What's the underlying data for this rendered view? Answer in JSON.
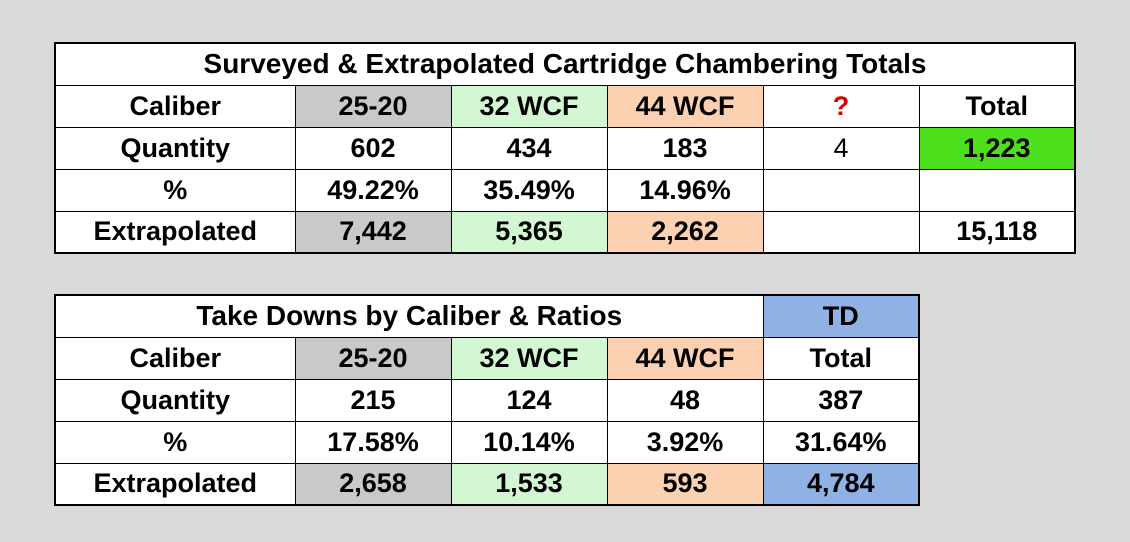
{
  "table1": {
    "title": "Surveyed & Extrapolated Cartridge Chambering Totals",
    "caliber_row": {
      "label": "Caliber",
      "c1": "25-20",
      "c2": "32 WCF",
      "c3": "44 WCF",
      "c4": "?",
      "c5": "Total"
    },
    "quantity_row": {
      "label": "Quantity",
      "c1": "602",
      "c2": "434",
      "c3": "183",
      "c4": "4",
      "c5": "1,223"
    },
    "percent_row": {
      "label": "%",
      "c1": "49.22%",
      "c2": "35.49%",
      "c3": "14.96%",
      "c4": "",
      "c5": ""
    },
    "extrapolated_row": {
      "label": "Extrapolated",
      "c1": "7,442",
      "c2": "5,365",
      "c3": "2,262",
      "c4": "",
      "c5": "15,118"
    }
  },
  "table2": {
    "title": "Take Downs by Caliber & Ratios",
    "td_header": "TD",
    "caliber_row": {
      "label": "Caliber",
      "c1": "25-20",
      "c2": "32 WCF",
      "c3": "44 WCF",
      "c4": "Total"
    },
    "quantity_row": {
      "label": "Quantity",
      "c1": "215",
      "c2": "124",
      "c3": "48",
      "c4": "387"
    },
    "percent_row": {
      "label": "%",
      "c1": "17.58%",
      "c2": "10.14%",
      "c3": "3.92%",
      "c4": "31.64%"
    },
    "extrapolated_row": {
      "label": "Extrapolated",
      "c1": "2,658",
      "c2": "1,533",
      "c3": "593",
      "c4": "4,784"
    }
  },
  "colors": {
    "background": "#d9d9d9",
    "col_25_20": "#c9c9c9",
    "col_32_wcf": "#d2f7d2",
    "col_44_wcf": "#fbd1b2",
    "total_highlight": "#4ee01c",
    "td_highlight": "#8fb1e3",
    "question_mark": "#d60000"
  }
}
